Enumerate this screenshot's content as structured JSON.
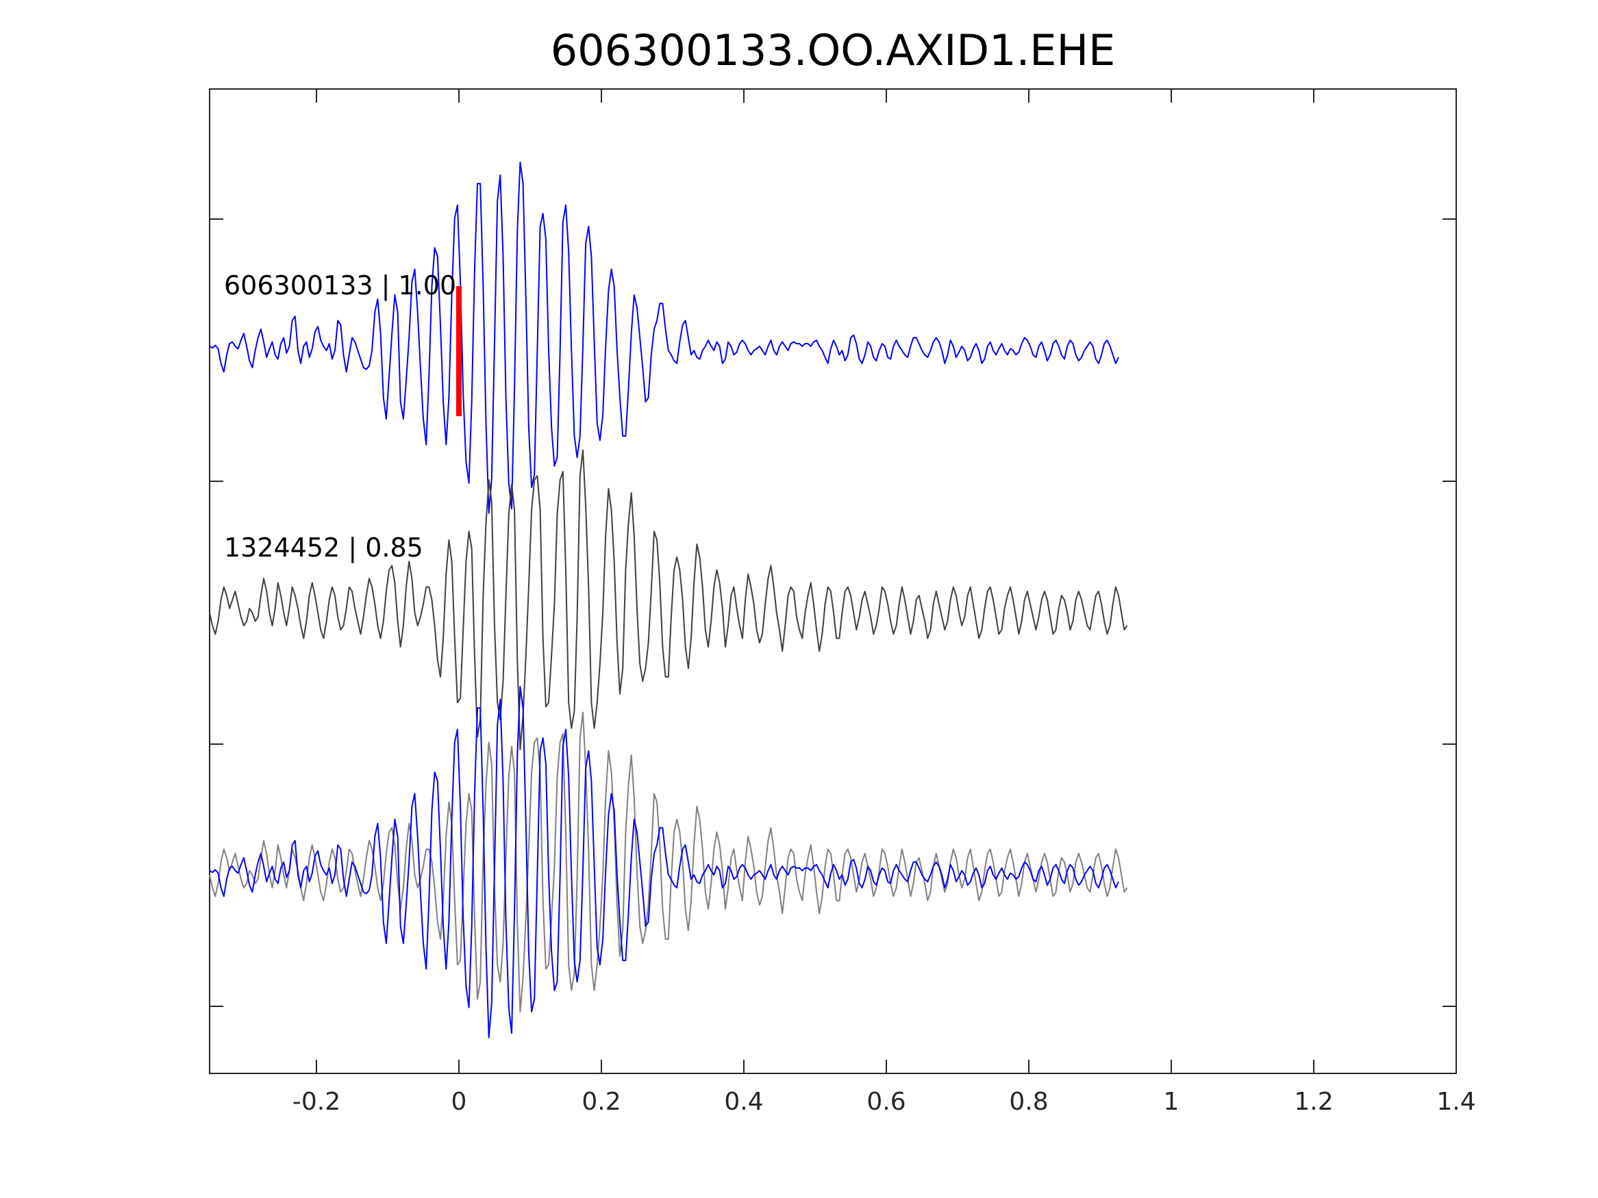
{
  "chart_data": {
    "type": "line",
    "title": "606300133.OO.AXID1.EHE",
    "xlabel": "",
    "ylabel": "",
    "xlim": [
      -0.35,
      1.4
    ],
    "x_ticks": [
      -0.2,
      0,
      0.2,
      0.4,
      0.6,
      0.8,
      1,
      1.2,
      1.4
    ],
    "x_tick_labels": [
      "-0.2",
      "0",
      "0.2",
      "0.4",
      "0.6",
      "0.8",
      "1",
      "1.2",
      "1.4"
    ],
    "grid": false,
    "trace_labels": [
      "606300133 | 1.00",
      "1324452 | 0.85"
    ],
    "pick_time": 0,
    "sample_interval": 0.004,
    "series": [
      {
        "role": "template",
        "color": "#0000ff",
        "samples": [
          0.05,
          0.03,
          0.06,
          0.02,
          -0.15,
          -0.25,
          -0.05,
          0.08,
          0.1,
          0.05,
          0.02,
          0.12,
          0.2,
          0.05,
          -0.12,
          -0.2,
          0.0,
          0.15,
          0.25,
          0.1,
          -0.08,
          0.02,
          0.1,
          -0.05,
          -0.1,
          0.08,
          0.15,
          -0.03,
          0.05,
          0.35,
          0.4,
          0.0,
          -0.15,
          0.05,
          0.1,
          -0.08,
          0.02,
          0.22,
          0.28,
          0.12,
          0.05,
          0.0,
          0.08,
          -0.1,
          0.0,
          0.35,
          0.3,
          -0.05,
          -0.25,
          -0.05,
          0.15,
          0.1,
          0.0,
          -0.1,
          -0.2,
          -0.22,
          -0.18,
          0.0,
          0.45,
          0.6,
          0.2,
          -0.55,
          -0.8,
          -0.3,
          0.2,
          0.65,
          0.45,
          -0.6,
          -0.8,
          -0.35,
          0.15,
          0.8,
          0.95,
          0.45,
          -0.2,
          -0.8,
          -1.1,
          -0.3,
          0.75,
          1.2,
          1.1,
          0.3,
          -0.6,
          -1.1,
          -0.55,
          0.65,
          1.55,
          1.7,
          0.8,
          -0.5,
          -1.3,
          -1.55,
          -0.6,
          0.95,
          1.95,
          1.95,
          0.75,
          -0.85,
          -1.9,
          -1.5,
          0.1,
          1.75,
          2.05,
          1.1,
          -0.55,
          -1.55,
          -1.85,
          -0.45,
          1.4,
          2.2,
          1.95,
          0.6,
          -0.9,
          -1.6,
          -1.45,
          0.0,
          1.45,
          1.6,
          1.3,
          0.0,
          -0.9,
          -1.35,
          -1.25,
          0.0,
          1.5,
          1.7,
          1.15,
          0.0,
          -1.0,
          -1.25,
          -1.0,
          0.05,
          1.25,
          1.45,
          1.1,
          0.1,
          -0.85,
          -1.05,
          -0.75,
          0.05,
          0.7,
          0.95,
          0.75,
          0.0,
          -0.55,
          -1.0,
          -1.0,
          -0.45,
          0.2,
          0.65,
          0.5,
          0.15,
          -0.2,
          -0.6,
          -0.55,
          -0.05,
          0.25,
          0.35,
          0.55,
          0.55,
          0.25,
          0.0,
          -0.05,
          -0.12,
          -0.15,
          0.1,
          0.3,
          0.35,
          0.15,
          -0.05,
          0.0,
          -0.08,
          -0.1,
          0.0,
          0.05,
          0.12,
          0.05,
          0.0,
          0.1,
          0.05,
          -0.15,
          -0.1,
          0.1,
          0.05,
          -0.05,
          -0.02,
          0.08,
          0.12,
          0.08,
          0.0,
          -0.05,
          0.0,
          0.02,
          0.05,
          0.0,
          -0.05,
          0.05,
          0.12,
          0.0,
          -0.05,
          0.05,
          0.1,
          0.05,
          0.0,
          0.08,
          0.1,
          0.08,
          0.08,
          0.05,
          0.08,
          0.08,
          0.05,
          0.1,
          0.12,
          0.05,
          0.0,
          -0.08,
          -0.15,
          0.02,
          0.12,
          0.05,
          -0.05,
          0.0,
          -0.12,
          -0.05,
          0.15,
          0.18,
          0.08,
          -0.1,
          -0.15,
          -0.05,
          0.1,
          0.05,
          -0.08,
          -0.12,
          0.0,
          0.08,
          0.05,
          -0.08,
          -0.1,
          0.05,
          0.12,
          0.05,
          0.0,
          -0.05,
          -0.08,
          0.05,
          0.15,
          0.15,
          0.08,
          0.0,
          -0.05,
          -0.08,
          0.0,
          0.1,
          0.15,
          0.1,
          0.0,
          -0.15,
          -0.05,
          0.12,
          0.05,
          -0.08,
          -0.02,
          0.05,
          0.0,
          -0.12,
          -0.08,
          0.02,
          0.08,
          0.0,
          -0.15,
          -0.1,
          0.05,
          0.1,
          0.0,
          -0.05,
          0.02,
          0.08,
          0.0,
          -0.05,
          0.02,
          0.0,
          -0.05,
          -0.02,
          0.08,
          0.15,
          0.12,
          0.05,
          -0.05,
          -0.08,
          0.05,
          0.1,
          0.0,
          -0.12,
          -0.05,
          0.08,
          0.12,
          0.05,
          -0.05,
          -0.1,
          0.05,
          0.12,
          0.08,
          -0.05,
          -0.12,
          -0.08,
          0.0,
          0.05,
          0.1,
          0.05,
          -0.1,
          -0.15,
          -0.05,
          0.08,
          0.12,
          0.05,
          -0.05,
          -0.15,
          -0.08
        ]
      },
      {
        "role": "detection",
        "color": "#404040",
        "samples": [
          0.0,
          -0.15,
          -0.25,
          -0.1,
          0.15,
          0.3,
          0.2,
          0.05,
          0.15,
          0.25,
          0.1,
          -0.05,
          -0.15,
          -0.1,
          0.05,
          0.0,
          -0.1,
          -0.05,
          0.2,
          0.4,
          0.25,
          0.0,
          -0.15,
          0.05,
          0.35,
          0.2,
          0.0,
          -0.15,
          0.05,
          0.3,
          0.2,
          0.05,
          -0.15,
          -0.3,
          -0.1,
          0.2,
          0.35,
          0.2,
          0.0,
          -0.2,
          -0.3,
          -0.1,
          0.15,
          0.3,
          0.2,
          -0.05,
          -0.2,
          -0.15,
          0.05,
          0.3,
          0.25,
          0.05,
          -0.1,
          -0.25,
          -0.05,
          0.2,
          0.4,
          0.3,
          0.1,
          -0.15,
          -0.3,
          -0.1,
          0.25,
          0.5,
          0.55,
          0.35,
          -0.1,
          -0.4,
          -0.15,
          0.3,
          0.6,
          0.4,
          0.0,
          -0.15,
          -0.05,
          0.1,
          0.3,
          0.3,
          0.15,
          -0.15,
          -0.55,
          -0.75,
          -0.3,
          0.45,
          0.85,
          0.6,
          -0.3,
          -1.05,
          -1.0,
          -0.2,
          0.6,
          0.95,
          0.75,
          -0.5,
          -1.45,
          -1.25,
          0.2,
          1.05,
          1.55,
          1.3,
          -0.15,
          -1.05,
          -1.25,
          -0.8,
          0.2,
          1.15,
          1.5,
          1.2,
          -0.55,
          -1.6,
          -1.2,
          -0.5,
          0.3,
          1.2,
          1.55,
          1.6,
          1.2,
          -0.3,
          -1.1,
          -1.05,
          -0.5,
          0.1,
          1.15,
          1.55,
          1.65,
          0.5,
          -1.05,
          -1.35,
          -1.15,
          -0.05,
          1.6,
          1.9,
          1.25,
          0.3,
          -1.05,
          -1.35,
          -1.05,
          -0.6,
          0.0,
          0.9,
          1.45,
          1.2,
          0.6,
          -0.35,
          -0.95,
          -0.65,
          0.5,
          1.05,
          1.4,
          0.9,
          0.05,
          -0.6,
          -0.8,
          -0.65,
          -0.35,
          0.25,
          0.95,
          0.85,
          0.35,
          -0.4,
          -0.75,
          -0.75,
          -0.05,
          0.5,
          0.65,
          0.5,
          0.15,
          -0.4,
          -0.65,
          -0.3,
          0.35,
          0.8,
          0.65,
          0.3,
          -0.2,
          -0.4,
          -0.1,
          0.3,
          0.5,
          0.35,
          0.05,
          -0.4,
          -0.15,
          0.2,
          0.3,
          0.05,
          -0.15,
          -0.3,
          0.15,
          0.45,
          0.3,
          0.1,
          -0.2,
          -0.35,
          -0.25,
          0.1,
          0.4,
          0.55,
          0.3,
          0.0,
          -0.2,
          -0.45,
          -0.15,
          0.2,
          0.3,
          0.25,
          -0.05,
          -0.2,
          -0.3,
          0.0,
          0.2,
          0.35,
          0.1,
          -0.2,
          -0.45,
          -0.25,
          0.1,
          0.3,
          0.25,
          0.0,
          -0.3,
          -0.3,
          0.0,
          0.25,
          0.3,
          0.2,
          0.0,
          -0.2,
          -0.05,
          0.15,
          0.25,
          0.1,
          -0.05,
          -0.25,
          -0.15,
          0.05,
          0.3,
          0.25,
          0.1,
          -0.1,
          -0.25,
          -0.15,
          0.1,
          0.3,
          0.15,
          -0.05,
          -0.25,
          -0.1,
          0.15,
          0.2,
          0.05,
          -0.1,
          -0.3,
          -0.2,
          0.1,
          0.25,
          0.1,
          -0.05,
          -0.2,
          -0.1,
          0.15,
          0.3,
          0.2,
          0.0,
          -0.15,
          -0.05,
          0.2,
          0.3,
          0.1,
          -0.1,
          -0.3,
          -0.2,
          0.05,
          0.25,
          0.3,
          0.15,
          -0.05,
          -0.25,
          -0.2,
          0.05,
          0.2,
          0.3,
          0.15,
          -0.05,
          -0.25,
          -0.1,
          0.15,
          0.25,
          0.1,
          -0.05,
          -0.2,
          -0.05,
          0.15,
          0.25,
          0.15,
          -0.05,
          -0.25,
          -0.2,
          0.05,
          0.2,
          0.15,
          0.0,
          -0.2,
          -0.1,
          0.15,
          0.25,
          0.15,
          0.0,
          -0.15,
          -0.2,
          0.0,
          0.2,
          0.25,
          0.1,
          -0.1,
          -0.25,
          -0.15,
          0.1,
          0.3,
          0.2,
          0.0,
          -0.2,
          -0.15
        ]
      }
    ]
  }
}
